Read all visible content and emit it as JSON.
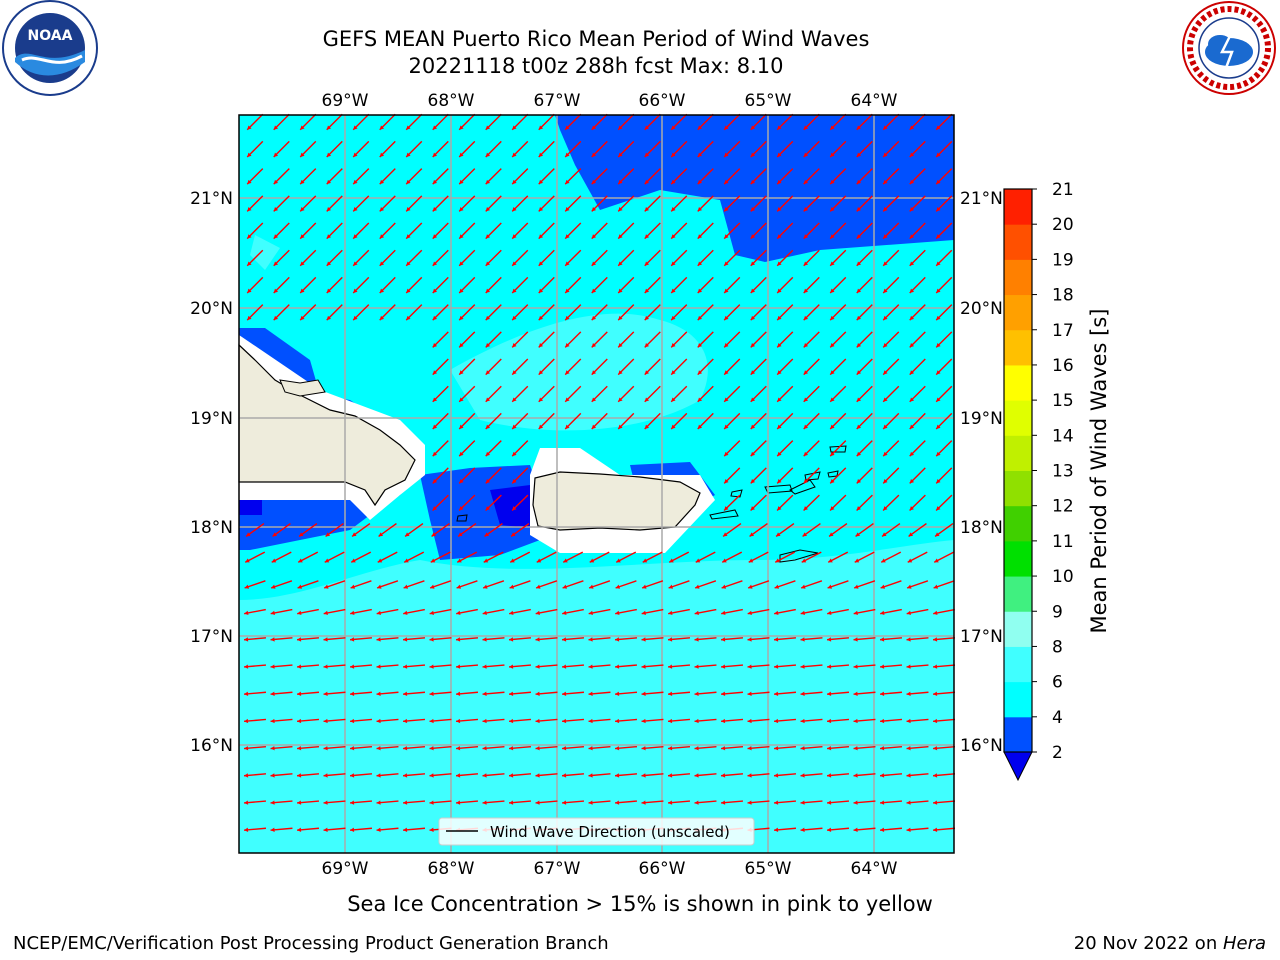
{
  "title": {
    "line1": "GEFS MEAN Puerto Rico Mean Period of Wind Waves",
    "line2": "20221118 t00z 288h fcst   Max: 8.10"
  },
  "logos": {
    "left": {
      "icon": "noaa-logo-icon",
      "text": "NOAA"
    },
    "right": {
      "icon": "nws-logo-icon",
      "text": "NATIONAL WEATHER SERVICE"
    }
  },
  "map": {
    "lon_ticks": [
      "69°W",
      "68°W",
      "67°W",
      "66°W",
      "65°W",
      "64°W"
    ],
    "lat_ticks": [
      "21°N",
      "20°N",
      "19°N",
      "18°N",
      "17°N",
      "16°N"
    ],
    "legend_label": "Wind Wave Direction (unscaled)",
    "arrow_color": "#ff0000"
  },
  "colorbar": {
    "label": "Mean Period of Wind Waves [s]",
    "ticks": [
      "2",
      "4",
      "6",
      "8",
      "9",
      "10",
      "11",
      "12",
      "13",
      "14",
      "15",
      "16",
      "17",
      "18",
      "19",
      "20",
      "21"
    ],
    "colors": [
      "#0050ff",
      "#00ffff",
      "#40ffff",
      "#90fff0",
      "#40f080",
      "#00e000",
      "#40d000",
      "#90e000",
      "#c0f000",
      "#e0ff00",
      "#ffff00",
      "#ffc000",
      "#ffa000",
      "#ff8000",
      "#ff5000",
      "#ff2000",
      "#ff0000"
    ],
    "under_color": "#0000ee"
  },
  "subcaption": "Sea Ice Concentration > 15% is shown in pink to yellow",
  "footer": {
    "left": "NCEP/EMC/Verification Post Processing Product Generation Branch",
    "right_prefix": "20 Nov 2022 on ",
    "right_italic": "Hera"
  }
}
